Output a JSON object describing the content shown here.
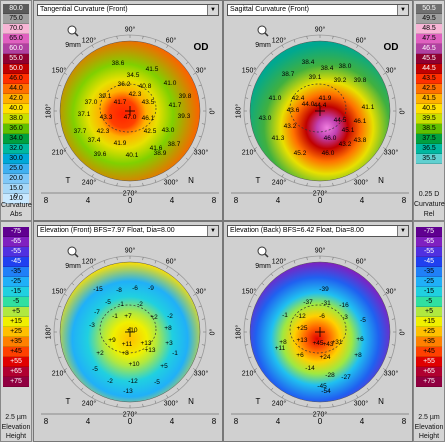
{
  "left_top_scale": {
    "values": [
      "80.0",
      "75.0",
      "70.0",
      "65.0",
      "60.0",
      "55.0",
      "50.0",
      "46.0",
      "44.0",
      "42.0",
      "40.0",
      "38.0",
      "36.0",
      "34.0",
      "32.0",
      "30.0",
      "25.0",
      "20.0",
      "15.0",
      "10.0"
    ],
    "colors": [
      "#5a5a5a",
      "#a0a0a0",
      "#f7b5d6",
      "#e060c0",
      "#b040a0",
      "#900030",
      "#c00000",
      "#ff3000",
      "#ff7000",
      "#ffb000",
      "#ffe000",
      "#c8e000",
      "#60c000",
      "#00a040",
      "#00b8a0",
      "#00a8d8",
      "#40b0f0",
      "#80c8f8",
      "#a8d8f8",
      "#c8e8ff"
    ],
    "bottom_labels": [
      "0",
      "Curvature",
      "Abs"
    ]
  },
  "right_top_scale": {
    "values": [
      "50.5",
      "49.5",
      "48.5",
      "47.5",
      "46.5",
      "45.5",
      "44.5",
      "43.5",
      "42.5",
      "41.5",
      "40.5",
      "39.5",
      "38.5",
      "37.5",
      "36.5",
      "35.5"
    ],
    "colors": [
      "#707070",
      "#a0a0a0",
      "#f7b5d6",
      "#e060c0",
      "#b040a0",
      "#900030",
      "#c00000",
      "#ff3000",
      "#ff7000",
      "#ffb000",
      "#ffe000",
      "#c8e000",
      "#60c000",
      "#00a040",
      "#00b8a0",
      "#60d0d0"
    ],
    "bottom_labels": [
      "0.25 D",
      "Curvature",
      "Rel"
    ]
  },
  "left_bottom_scale": {
    "values": [
      "-75",
      "-65",
      "-55",
      "-45",
      "-35",
      "-25",
      "-15",
      "-5",
      "+5",
      "+15",
      "+25",
      "+35",
      "+45",
      "+55",
      "+65",
      "+75"
    ],
    "colors": [
      "#600090",
      "#8020c0",
      "#5030e0",
      "#2040f0",
      "#2080f8",
      "#20b0f8",
      "#20d0e0",
      "#30e0a0",
      "#b0e840",
      "#f0f000",
      "#ffc000",
      "#ff8000",
      "#ff4000",
      "#e00000",
      "#b00030",
      "#900040"
    ],
    "bottom_labels": [
      "2.5 µm",
      "Elevation",
      "Height"
    ]
  },
  "right_bottom_scale": {
    "values": [
      "-75",
      "-65",
      "-55",
      "-45",
      "-35",
      "-25",
      "-15",
      "-5",
      "+5",
      "+15",
      "+25",
      "+35",
      "+45",
      "+55",
      "+65",
      "+75"
    ],
    "colors": [
      "#600090",
      "#8020c0",
      "#5030e0",
      "#2040f0",
      "#2080f8",
      "#20b0f8",
      "#20d0e0",
      "#30e0a0",
      "#b0e840",
      "#f0f000",
      "#ffc000",
      "#ff8000",
      "#ff4000",
      "#e00000",
      "#b00030",
      "#900040"
    ],
    "bottom_labels": [
      "2.5 µm",
      "Elevation",
      "Height"
    ]
  },
  "panels": {
    "tl": {
      "dropdown": "Tangential Curvature (Front)",
      "zoom": "9mm",
      "eye": "OD",
      "values": [
        [
          "38.6",
          118,
          65
        ],
        [
          "34.5",
          133,
          77
        ],
        [
          "41.5",
          152,
          71
        ],
        [
          "36.2",
          124,
          86
        ],
        [
          "40.8",
          145,
          88
        ],
        [
          "41.0",
          170,
          85
        ],
        [
          "39.1",
          105,
          98
        ],
        [
          "42.3",
          135,
          96
        ],
        [
          "39.8",
          185,
          98
        ],
        [
          "37.0",
          91,
          104
        ],
        [
          "41.7",
          120,
          104
        ],
        [
          "43.5",
          148,
          104
        ],
        [
          "41.7",
          175,
          107
        ],
        [
          "37.1",
          84,
          116
        ],
        [
          "43.3",
          106,
          119
        ],
        [
          "47.0",
          130,
          119
        ],
        [
          "46.1",
          148,
          120
        ],
        [
          "39.3",
          184,
          118
        ],
        [
          "37.7",
          80,
          133
        ],
        [
          "42.3",
          103,
          133
        ],
        [
          "42.5",
          150,
          133
        ],
        [
          "43.0",
          168,
          132
        ],
        [
          "37.4",
          94,
          142
        ],
        [
          "41.9",
          120,
          145
        ],
        [
          "41.6",
          156,
          150
        ],
        [
          "38.7",
          174,
          146
        ],
        [
          "39.6",
          100,
          156
        ],
        [
          "40.1",
          132,
          157
        ],
        [
          "38.9",
          160,
          155
        ]
      ]
    },
    "tr": {
      "dropdown": "Sagittal Curvature (Front)",
      "zoom": "9mm",
      "eye": "OD",
      "values": [
        [
          "38.4",
          308,
          64
        ],
        [
          "38.4",
          327,
          70
        ],
        [
          "38.0",
          345,
          68
        ],
        [
          "38.7",
          288,
          76
        ],
        [
          "39.1",
          315,
          79
        ],
        [
          "39.2",
          340,
          82
        ],
        [
          "39.8",
          360,
          82
        ],
        [
          "41.0",
          275,
          100
        ],
        [
          "42.4",
          298,
          100
        ],
        [
          "41.9",
          325,
          100
        ],
        [
          "43.6",
          293,
          112
        ],
        [
          "44.0",
          308,
          106
        ],
        [
          "44.4",
          320,
          107
        ],
        [
          "41.1",
          368,
          109
        ],
        [
          "44.5",
          340,
          122
        ],
        [
          "43.0",
          265,
          120
        ],
        [
          "43.2",
          290,
          128
        ],
        [
          "45.1",
          348,
          132
        ],
        [
          "46.1",
          360,
          123
        ],
        [
          "41.3",
          278,
          140
        ],
        [
          "46.0",
          330,
          140
        ],
        [
          "45.2",
          300,
          155
        ],
        [
          "46.0",
          328,
          155
        ],
        [
          "43.8",
          360,
          142
        ],
        [
          "43.2",
          345,
          146
        ]
      ]
    },
    "bl": {
      "dropdown": "Elevation (Front)  BFS=7.97 Float, Dia=8.00",
      "zoom": "9mm",
      "eye": "",
      "values": [
        [
          "-15",
          98,
          291
        ],
        [
          "-8",
          119,
          292
        ],
        [
          "-6",
          135,
          290
        ],
        [
          "-9",
          151,
          290
        ],
        [
          "-5",
          108,
          304
        ],
        [
          "-1",
          121,
          306
        ],
        [
          "-2",
          140,
          306
        ],
        [
          "-7",
          97,
          314
        ],
        [
          "-1",
          115,
          318
        ],
        [
          "+7",
          128,
          318
        ],
        [
          "+2",
          154,
          319
        ],
        [
          "-2",
          170,
          318
        ],
        [
          "-3",
          92,
          327
        ],
        [
          "+10",
          132,
          332
        ],
        [
          "+8",
          168,
          330
        ],
        [
          "+9",
          112,
          342
        ],
        [
          "+11",
          127,
          346
        ],
        [
          "+13",
          146,
          345
        ],
        [
          "+3",
          169,
          345
        ],
        [
          "+2",
          100,
          355
        ],
        [
          "+8",
          125,
          355
        ],
        [
          "+13",
          150,
          352
        ],
        [
          "-1",
          175,
          355
        ],
        [
          "+10",
          134,
          366
        ],
        [
          "-5",
          95,
          371
        ],
        [
          "+5",
          164,
          368
        ],
        [
          "-2",
          110,
          383
        ],
        [
          "-12",
          133,
          383
        ],
        [
          "-5",
          157,
          384
        ],
        [
          "-13",
          128,
          393
        ]
      ]
    },
    "bl2": {
      "dropdown": "",
      "values": []
    },
    "br": {
      "dropdown": "Elevation (Back)  BFS=6.42 Float, Dia=8.00",
      "zoom": "9mm",
      "eye": "",
      "values": [
        [
          "-39",
          324,
          291
        ],
        [
          "-37",
          308,
          304
        ],
        [
          "-31",
          326,
          305
        ],
        [
          "-16",
          344,
          307
        ],
        [
          "-1",
          285,
          317
        ],
        [
          "-12",
          301,
          318
        ],
        [
          "-6",
          322,
          318
        ],
        [
          "-3",
          345,
          319
        ],
        [
          "-5",
          363,
          322
        ],
        [
          "+25",
          302,
          330
        ],
        [
          "+8",
          283,
          344
        ],
        [
          "+13",
          302,
          342
        ],
        [
          "+45",
          318,
          345
        ],
        [
          "+31",
          337,
          344
        ],
        [
          "+6",
          360,
          341
        ],
        [
          "+6",
          300,
          357
        ],
        [
          "+24",
          325,
          359
        ],
        [
          "+43",
          328,
          346
        ],
        [
          "+8",
          358,
          357
        ],
        [
          "+11",
          280,
          350
        ],
        [
          "-14",
          310,
          370
        ],
        [
          "-28",
          330,
          377
        ],
        [
          "-45",
          322,
          388
        ],
        [
          "-27",
          346,
          379
        ],
        [
          "-54",
          326,
          393
        ]
      ]
    }
  },
  "axis_labels": {
    "deg90": "90°",
    "deg60": "60°",
    "deg120": "120°",
    "deg150": "150°",
    "deg30": "30°",
    "deg180": "180°",
    "deg0": "0°",
    "deg210": "210°",
    "deg330": "330°",
    "deg240": "240°",
    "deg300": "300°",
    "deg270": "270°",
    "T": "T",
    "N": "N",
    "ticks": [
      "8",
      "4",
      "0",
      "4",
      "8"
    ]
  }
}
